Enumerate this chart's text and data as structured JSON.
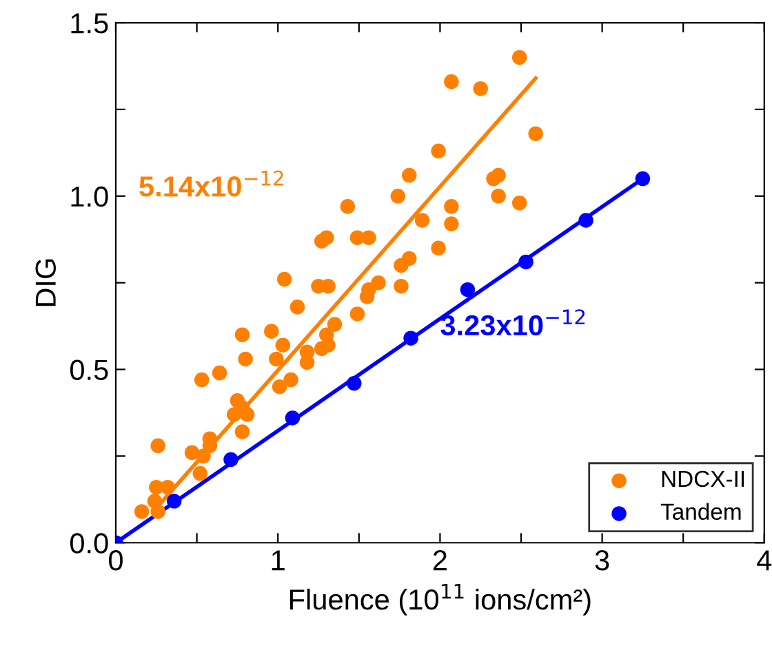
{
  "chart_data": {
    "type": "scatter",
    "xlabel": "Fluence (10$^{11}$ ions/cm²)",
    "ylabel": "DIG",
    "xlim": [
      0,
      4
    ],
    "ylim": [
      0,
      1.5
    ],
    "xticks": [
      0,
      {
        "value": 0.5,
        "label": null
      },
      1,
      {
        "value": 1.5,
        "label": null
      },
      2,
      {
        "value": 2.5,
        "label": null
      },
      3,
      {
        "value": 3.5,
        "label": null
      },
      4
    ],
    "yticks": [
      {
        "value": 0,
        "label": "0.0"
      },
      {
        "value": 0.25,
        "label": null
      },
      {
        "value": 0.5,
        "label": "0.5"
      },
      {
        "value": 0.75,
        "label": null
      },
      {
        "value": 1.0,
        "label": "1.0"
      },
      {
        "value": 1.25,
        "label": null
      },
      {
        "value": 1.5,
        "label": "1.5"
      }
    ],
    "grid": false,
    "legend": "bottom right",
    "marker": "circle",
    "series": [
      {
        "name": "NDCX-II",
        "color": "#ff8000",
        "x": [
          2.49,
          2.07,
          2.25,
          2.59,
          1.99,
          1.81,
          2.36,
          2.33,
          1.74,
          2.36,
          2.49,
          1.43,
          2.07,
          1.89,
          2.07,
          1.3,
          1.27,
          1.49,
          1.56,
          1.99,
          1.81,
          1.76,
          1.04,
          1.62,
          1.25,
          1.31,
          1.56,
          1.76,
          1.12,
          1.55,
          1.49,
          0.78,
          0.96,
          1.03,
          1.35,
          1.3,
          1.18,
          1.27,
          1.31,
          0.99,
          0.8,
          1.18,
          0.64,
          0.53,
          1.01,
          1.08,
          0.75,
          0.78,
          0.81,
          0.73,
          0.78,
          0.58,
          0.58,
          0.47,
          0.54,
          0.52,
          0.26,
          0.25,
          0.32,
          0.24,
          0.16,
          0.26
        ],
        "values": [
          1.4,
          1.33,
          1.31,
          1.18,
          1.13,
          1.06,
          1.06,
          1.05,
          1.0,
          1.0,
          0.98,
          0.97,
          0.97,
          0.93,
          0.92,
          0.88,
          0.87,
          0.88,
          0.88,
          0.85,
          0.82,
          0.8,
          0.76,
          0.75,
          0.74,
          0.74,
          0.73,
          0.74,
          0.68,
          0.71,
          0.66,
          0.6,
          0.61,
          0.57,
          0.63,
          0.6,
          0.55,
          0.56,
          0.57,
          0.53,
          0.53,
          0.52,
          0.49,
          0.47,
          0.45,
          0.47,
          0.41,
          0.39,
          0.37,
          0.37,
          0.32,
          0.3,
          0.28,
          0.26,
          0.25,
          0.2,
          0.28,
          0.16,
          0.16,
          0.12,
          0.09,
          0.09
        ]
      },
      {
        "name": "Tandem",
        "color": "#0000ff",
        "x": [
          0,
          0.36,
          0.71,
          1.09,
          1.47,
          1.82,
          2.17,
          2.53,
          2.9,
          3.25
        ],
        "values": [
          0,
          0.12,
          0.24,
          0.36,
          0.46,
          0.59,
          0.73,
          0.81,
          0.93,
          1.05
        ]
      },
      {
        "type": "line",
        "marker": "none",
        "color": "#ff8000",
        "x": [
          0.25,
          2.59
        ],
        "values": [
          0.1,
          1.34
        ]
      },
      {
        "type": "line",
        "marker": "none",
        "color": "#0000ff",
        "x": [
          0,
          3.25
        ],
        "values": [
          0,
          1.05
        ]
      }
    ],
    "annotations": [
      "5.14x10$^{−12}$",
      "3.23x10$^{−12}$"
    ]
  }
}
